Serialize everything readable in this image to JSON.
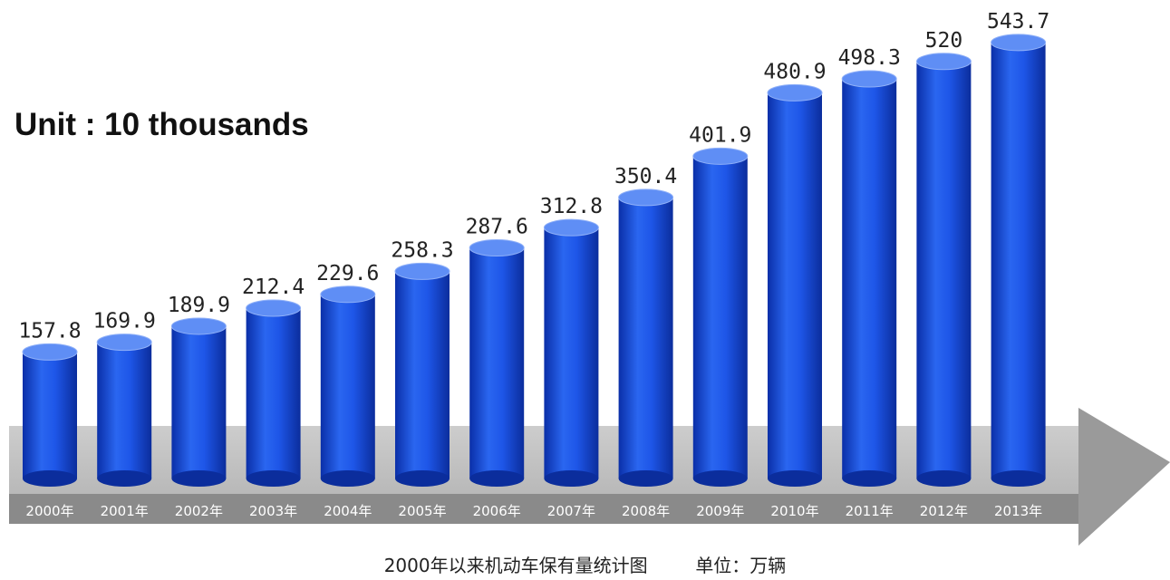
{
  "unit_label": "Unit : 10 thousands",
  "caption": {
    "title": "2000年以来机动车保有量统计图",
    "unit": "单位：万辆"
  },
  "colors": {
    "bar": "#1a52e6",
    "bar_top": "#5f8ef5",
    "arrow_band": "#bdbdbd",
    "arrow_tip": "#9a9a9a",
    "tick_band": "#8a8a8a",
    "tick_text": "#ffffff"
  },
  "chart_data": {
    "type": "bar",
    "categories": [
      "2000年",
      "2001年",
      "2002年",
      "2003年",
      "2004年",
      "2005年",
      "2006年",
      "2007年",
      "2008年",
      "2009年",
      "2010年",
      "2011年",
      "2012年",
      "2013年"
    ],
    "values": [
      157.8,
      169.9,
      189.9,
      212.4,
      229.6,
      258.3,
      287.6,
      312.8,
      350.4,
      401.9,
      480.9,
      498.3,
      520,
      543.7
    ],
    "value_labels": [
      "157.8",
      "169.9",
      "189.9",
      "212.4",
      "229.6",
      "258.3",
      "287.6",
      "312.8",
      "350.4",
      "401.9",
      "480.9",
      "498.3",
      "520",
      "543.7"
    ],
    "ylim": [
      0,
      600
    ],
    "grid": false,
    "legend": "none"
  }
}
